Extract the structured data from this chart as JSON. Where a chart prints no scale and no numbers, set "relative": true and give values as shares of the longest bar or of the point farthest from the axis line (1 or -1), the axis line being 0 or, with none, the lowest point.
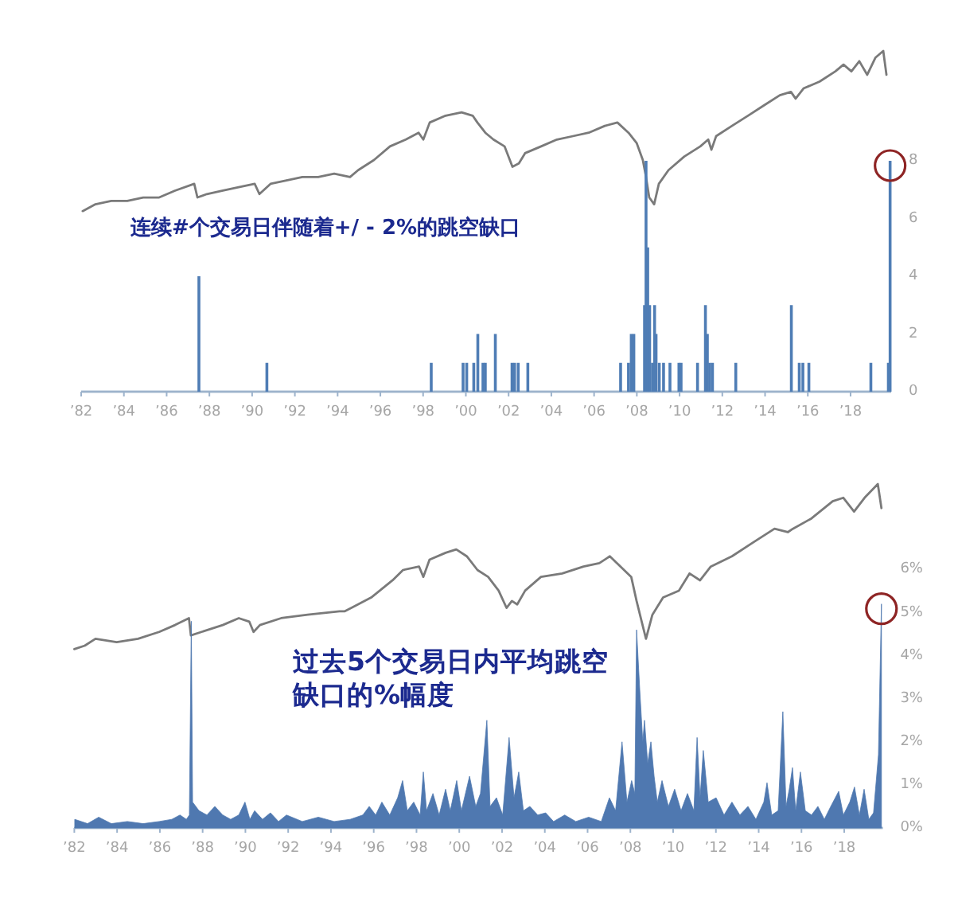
{
  "chart_data": [
    {
      "type": "line",
      "relative": true,
      "xlim": [
        1982,
        2019.9
      ],
      "series": [
        {
          "color": "#7a7a7a",
          "x": [
            1982.07,
            1982.67,
            1983.41,
            1984.16,
            1984.9,
            1985.65,
            1986.39,
            1987.29,
            1987.44,
            1987.88,
            1988.63,
            1989.37,
            1990.12,
            1990.34,
            1990.86,
            1991.61,
            1992.35,
            1993.09,
            1993.84,
            1994.58,
            1994.96,
            1995.7,
            1996.45,
            1997.19,
            1997.79,
            1998.01,
            1998.31,
            1999.05,
            1999.8,
            2000.32,
            2000.54,
            2000.91,
            2001.29,
            2001.81,
            2002.18,
            2002.48,
            2002.77,
            2003.52,
            2004.26,
            2005.01,
            2005.75,
            2006.5,
            2007.09,
            2007.61,
            2007.99,
            2008.28,
            2008.43,
            2008.58,
            2008.81,
            2009.03,
            2009.48,
            2010.22,
            2010.97,
            2011.34,
            2011.49,
            2011.71,
            2012.45,
            2013.2,
            2013.94,
            2014.69,
            2015.21,
            2015.43,
            2015.8,
            2016.55,
            2017.29,
            2017.67,
            2018.04,
            2018.41,
            2018.78,
            2019.16,
            2019.53,
            2019.68
          ],
          "values": [
            0.53,
            0.55,
            0.56,
            0.56,
            0.57,
            0.57,
            0.59,
            0.61,
            0.57,
            0.58,
            0.59,
            0.6,
            0.61,
            0.58,
            0.61,
            0.62,
            0.63,
            0.63,
            0.64,
            0.63,
            0.65,
            0.68,
            0.72,
            0.74,
            0.76,
            0.74,
            0.79,
            0.81,
            0.82,
            0.81,
            0.79,
            0.76,
            0.74,
            0.72,
            0.66,
            0.67,
            0.7,
            0.72,
            0.74,
            0.75,
            0.76,
            0.78,
            0.79,
            0.76,
            0.73,
            0.68,
            0.63,
            0.57,
            0.55,
            0.61,
            0.65,
            0.69,
            0.72,
            0.74,
            0.71,
            0.75,
            0.78,
            0.81,
            0.84,
            0.87,
            0.88,
            0.86,
            0.89,
            0.91,
            0.94,
            0.96,
            0.94,
            0.97,
            0.93,
            0.98,
            1.0,
            0.93
          ]
        }
      ]
    },
    {
      "type": "bar",
      "xlim": [
        1982,
        2019.9
      ],
      "xticks": [
        {
          "value": 1982,
          "label": "’82"
        },
        {
          "value": 1984,
          "label": "’84"
        },
        {
          "value": 1986,
          "label": "’86"
        },
        {
          "value": 1988,
          "label": "’88"
        },
        {
          "value": 1990,
          "label": "’90"
        },
        {
          "value": 1992,
          "label": "’92"
        },
        {
          "value": 1994,
          "label": "’94"
        },
        {
          "value": 1996,
          "label": "’96"
        },
        {
          "value": 1998,
          "label": "’98"
        },
        {
          "value": 2000,
          "label": "’00"
        },
        {
          "value": 2002,
          "label": "’02"
        },
        {
          "value": 2004,
          "label": "’04"
        },
        {
          "value": 2006,
          "label": "’06"
        },
        {
          "value": 2008,
          "label": "’08"
        },
        {
          "value": 2010,
          "label": "’10"
        },
        {
          "value": 2012,
          "label": "’12"
        },
        {
          "value": 2014,
          "label": "’14"
        },
        {
          "value": 2016,
          "label": "’16"
        },
        {
          "value": 2018,
          "label": "’18"
        }
      ],
      "y2lim": [
        0,
        8
      ],
      "y2ticks": [
        0,
        2,
        4,
        6,
        8
      ],
      "series": [
        {
          "axis": "y2",
          "color": "#4f7db5",
          "x": [
            1987.51,
            1990.69,
            1998.38,
            1999.87,
            2000.04,
            2000.37,
            2000.56,
            2000.8,
            2000.91,
            2001.38,
            2002.16,
            2002.28,
            2002.45,
            2002.9,
            2007.24,
            2007.61,
            2007.74,
            2007.86,
            2008.36,
            2008.43,
            2008.51,
            2008.6,
            2008.73,
            2008.83,
            2008.9,
            2009.05,
            2009.25,
            2009.55,
            2009.97,
            2010.07,
            2010.84,
            2011.21,
            2011.3,
            2011.41,
            2011.54,
            2012.63,
            2015.23,
            2015.6,
            2015.77,
            2016.05,
            2018.95,
            2019.77,
            2019.85
          ],
          "values": [
            4,
            1,
            1,
            1,
            1,
            1,
            2,
            1,
            1,
            2,
            1,
            1,
            1,
            1,
            1,
            1,
            2,
            2,
            3,
            8,
            5,
            3,
            1,
            3,
            2,
            1,
            1,
            1,
            1,
            1,
            1,
            3,
            2,
            1,
            1,
            1,
            3,
            1,
            1,
            1,
            1,
            1,
            8
          ]
        }
      ],
      "annotations": [
        "连续#个交易日伴随着+/ - 2%的跳空缺口"
      ]
    },
    {
      "type": "line",
      "relative": true,
      "xlim": [
        1982,
        2019.8
      ],
      "series": [
        {
          "color": "#7a7a7a",
          "x": [
            1982.0,
            1982.49,
            1982.99,
            1983.98,
            1984.98,
            1985.97,
            1986.71,
            1987.36,
            1987.45,
            1987.95,
            1988.94,
            1989.69,
            1990.18,
            1990.38,
            1990.68,
            1991.67,
            1992.91,
            1994.4,
            1994.65,
            1995.88,
            1996.88,
            1997.37,
            1998.12,
            1998.32,
            1998.61,
            1999.36,
            1999.86,
            2000.35,
            2000.85,
            2001.35,
            2001.84,
            2002.21,
            2002.46,
            2002.71,
            2003.08,
            2003.82,
            2004.81,
            2005.81,
            2006.55,
            2007.04,
            2007.54,
            2008.04,
            2008.29,
            2008.53,
            2008.73,
            2009.03,
            2009.53,
            2010.27,
            2010.77,
            2011.26,
            2011.76,
            2012.75,
            2013.74,
            2014.74,
            2015.36,
            2015.6,
            2016.47,
            2017.46,
            2017.96,
            2018.46,
            2018.95,
            2019.57,
            2019.74
          ],
          "values": [
            0.52,
            0.53,
            0.55,
            0.54,
            0.55,
            0.57,
            0.59,
            0.61,
            0.56,
            0.57,
            0.59,
            0.61,
            0.6,
            0.57,
            0.59,
            0.61,
            0.62,
            0.63,
            0.63,
            0.67,
            0.72,
            0.75,
            0.76,
            0.73,
            0.78,
            0.8,
            0.81,
            0.79,
            0.75,
            0.73,
            0.69,
            0.64,
            0.66,
            0.65,
            0.69,
            0.73,
            0.74,
            0.76,
            0.77,
            0.79,
            0.76,
            0.73,
            0.66,
            0.6,
            0.55,
            0.62,
            0.67,
            0.69,
            0.74,
            0.72,
            0.76,
            0.79,
            0.83,
            0.87,
            0.86,
            0.87,
            0.9,
            0.95,
            0.96,
            0.92,
            0.96,
            1.0,
            0.93
          ]
        }
      ]
    },
    {
      "type": "area",
      "xlim": [
        1982,
        2019.8
      ],
      "xticks": [
        {
          "value": 1982,
          "label": "’82"
        },
        {
          "value": 1984,
          "label": "’84"
        },
        {
          "value": 1986,
          "label": "’86"
        },
        {
          "value": 1988,
          "label": "’88"
        },
        {
          "value": 1990,
          "label": "’90"
        },
        {
          "value": 1992,
          "label": "’92"
        },
        {
          "value": 1994,
          "label": "’94"
        },
        {
          "value": 1996,
          "label": "’96"
        },
        {
          "value": 1998,
          "label": "’98"
        },
        {
          "value": 2000,
          "label": "’00"
        },
        {
          "value": 2002,
          "label": "’02"
        },
        {
          "value": 2004,
          "label": "’04"
        },
        {
          "value": 2006,
          "label": "’06"
        },
        {
          "value": 2008,
          "label": "’08"
        },
        {
          "value": 2010,
          "label": "’10"
        },
        {
          "value": 2012,
          "label": "’12"
        },
        {
          "value": 2014,
          "label": "’14"
        },
        {
          "value": 2016,
          "label": "’16"
        },
        {
          "value": 2018,
          "label": "’18"
        }
      ],
      "y2lim": [
        0,
        6
      ],
      "y2ticks": [
        {
          "value": 0,
          "label": "0%"
        },
        {
          "value": 1,
          "label": "1%"
        },
        {
          "value": 2,
          "label": "2%"
        },
        {
          "value": 3,
          "label": "3%"
        },
        {
          "value": 4,
          "label": "4%"
        },
        {
          "value": 5,
          "label": "5%"
        },
        {
          "value": 6,
          "label": "6%"
        }
      ],
      "series": [
        {
          "axis": "y2",
          "color": "#4f78b0",
          "x": [
            1982.02,
            1982.62,
            1983.14,
            1983.73,
            1984.48,
            1985.22,
            1985.97,
            1986.56,
            1986.94,
            1987.24,
            1987.38,
            1987.47,
            1987.53,
            1987.83,
            1988.2,
            1988.57,
            1988.94,
            1989.31,
            1989.69,
            1989.98,
            1990.21,
            1990.43,
            1990.8,
            1991.17,
            1991.55,
            1991.92,
            1992.66,
            1993.41,
            1994.15,
            1994.9,
            1995.49,
            1995.79,
            1996.09,
            1996.38,
            1996.75,
            1997.12,
            1997.35,
            1997.57,
            1997.87,
            1998.17,
            1998.32,
            1998.47,
            1998.77,
            1999.06,
            1999.36,
            1999.58,
            1999.88,
            2000.1,
            2000.48,
            2000.77,
            2000.99,
            2001.29,
            2001.44,
            2001.74,
            2002.03,
            2002.33,
            2002.56,
            2002.78,
            2003.0,
            2003.3,
            2003.67,
            2004.04,
            2004.41,
            2004.93,
            2005.45,
            2006.05,
            2006.64,
            2007.02,
            2007.31,
            2007.61,
            2007.84,
            2008.06,
            2008.21,
            2008.29,
            2008.44,
            2008.58,
            2008.66,
            2008.81,
            2008.96,
            2009.11,
            2009.26,
            2009.48,
            2009.78,
            2010.07,
            2010.37,
            2010.67,
            2010.97,
            2011.12,
            2011.26,
            2011.41,
            2011.64,
            2012.01,
            2012.38,
            2012.75,
            2013.12,
            2013.5,
            2013.87,
            2014.24,
            2014.39,
            2014.61,
            2014.91,
            2015.13,
            2015.28,
            2015.43,
            2015.58,
            2015.73,
            2015.95,
            2016.18,
            2016.47,
            2016.77,
            2017.07,
            2017.37,
            2017.74,
            2017.96,
            2018.26,
            2018.48,
            2018.71,
            2018.93,
            2019.15,
            2019.37,
            2019.6,
            2019.74
          ],
          "values": [
            0.2,
            0.1,
            0.25,
            0.1,
            0.15,
            0.1,
            0.15,
            0.2,
            0.3,
            0.2,
            0.3,
            4.8,
            0.6,
            0.4,
            0.3,
            0.5,
            0.3,
            0.2,
            0.3,
            0.6,
            0.2,
            0.4,
            0.2,
            0.35,
            0.15,
            0.3,
            0.15,
            0.25,
            0.15,
            0.2,
            0.3,
            0.5,
            0.3,
            0.6,
            0.3,
            0.7,
            1.1,
            0.4,
            0.6,
            0.3,
            1.3,
            0.4,
            0.8,
            0.3,
            0.9,
            0.4,
            1.1,
            0.4,
            1.2,
            0.5,
            0.8,
            2.5,
            0.5,
            0.7,
            0.3,
            2.1,
            0.7,
            1.3,
            0.4,
            0.5,
            0.3,
            0.35,
            0.15,
            0.3,
            0.15,
            0.25,
            0.15,
            0.7,
            0.4,
            2.0,
            0.6,
            1.1,
            0.8,
            4.6,
            3.2,
            2.0,
            2.5,
            1.5,
            2.0,
            1.2,
            0.6,
            1.1,
            0.5,
            0.9,
            0.4,
            0.8,
            0.4,
            2.1,
            0.7,
            1.8,
            0.6,
            0.7,
            0.3,
            0.6,
            0.3,
            0.5,
            0.2,
            0.6,
            1.05,
            0.3,
            0.4,
            2.7,
            0.5,
            0.9,
            1.4,
            0.4,
            1.3,
            0.4,
            0.3,
            0.5,
            0.2,
            0.5,
            0.85,
            0.3,
            0.6,
            0.95,
            0.3,
            0.9,
            0.2,
            0.35,
            1.7,
            5.2
          ]
        }
      ],
      "annotations": [
        "过去5个交易日内平均跳空缺口的%幅度"
      ]
    }
  ]
}
